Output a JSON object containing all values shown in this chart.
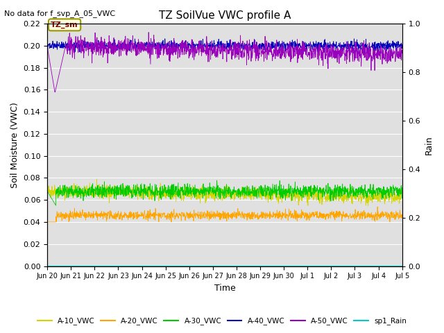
{
  "title": "TZ SoilVue VWC profile A",
  "top_left_text": "No data for f_svp_A_05_VWC",
  "annotation_text": "TZ_sm",
  "xlabel": "Time",
  "ylabel": "Soil Moisture (VWC)",
  "ylabel_right": "Rain",
  "ylim": [
    0.0,
    0.22
  ],
  "ylim_right": [
    0.0,
    1.0
  ],
  "background_color": "#e0e0e0",
  "figure_color": "#ffffff",
  "a10_color": "#d4d400",
  "a20_color": "#ffa500",
  "a30_color": "#00cc00",
  "a40_color": "#0000bb",
  "a50_color": "#9900bb",
  "rain_color": "#00cccc",
  "n_points": 1500,
  "xtick_labels": [
    "Jun 20",
    "Jun 21",
    "Jun 22",
    "Jun 23",
    "Jun 24",
    "Jun 25",
    "Jun 26",
    "Jun 27",
    "Jun 28",
    "Jun 29",
    "Jun 30",
    "Jul 1",
    "Jul 2",
    "Jul 3",
    "Jul 4",
    "Jul 5"
  ],
  "legend_entries": [
    "A-10_VWC",
    "A-20_VWC",
    "A-30_VWC",
    "A-40_VWC",
    "A-50_VWC",
    "sp1_Rain"
  ],
  "legend_colors": [
    "#d4d400",
    "#ffa500",
    "#00cc00",
    "#0000bb",
    "#9900bb",
    "#00cccc"
  ]
}
